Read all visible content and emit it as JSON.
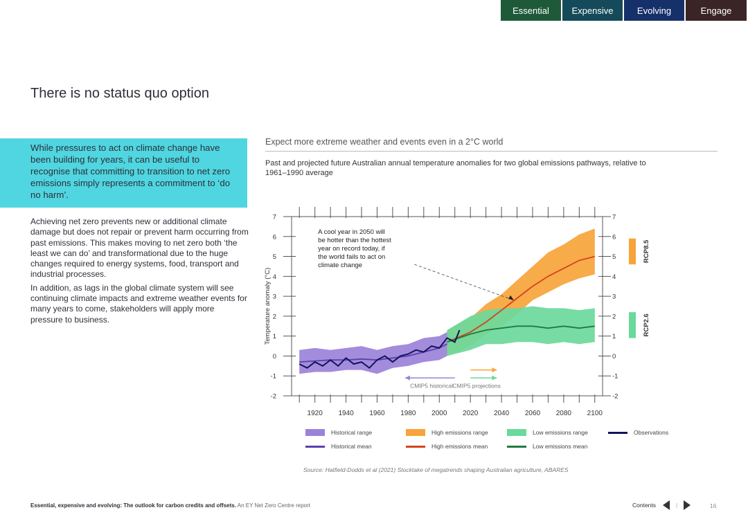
{
  "tabs": [
    {
      "label": "Essential"
    },
    {
      "label": "Expensive"
    },
    {
      "label": "Evolving"
    },
    {
      "label": "Engage"
    }
  ],
  "page_title": "There is no status quo option",
  "callout": "While pressures to act on climate change have been building for years, it can be useful to recognise that committing to transition to net zero emissions simply represents a commitment to ‘do no harm’.",
  "body": [
    "Achieving net zero prevents new or additional climate damage but does not repair or prevent harm occurring from past emissions. This makes moving to net zero both ‘the least we can do’ and transformational due to the huge changes required to energy systems, food, transport and industrial processes.",
    "In addition, as lags in the global climate system will see continuing climate impacts and extreme weather events for many years to come, stakeholders will apply more pressure to business."
  ],
  "figure": {
    "title": "Expect more extreme weather and events even in a 2°C world",
    "subtitle": "Past and projected future Australian annual temperature anomalies for two global emissions pathways, relative to 1961–1990 average",
    "source": "Source: Hatfield-Dodds et al (2021) Stocktake of megatrends shaping Australian agriculture, ABARES"
  },
  "chart_data": {
    "type": "line",
    "ylabel": "Temperature anomaly (°C)",
    "xlim": [
      1905,
      2105
    ],
    "ylim": [
      -2,
      7
    ],
    "x_ticks": [
      1920,
      1940,
      1960,
      1980,
      2000,
      2020,
      2040,
      2060,
      2080,
      2100
    ],
    "y_ticks": [
      -2,
      -1,
      0,
      1,
      2,
      3,
      4,
      5,
      6,
      7
    ],
    "annotation": "A cool year in 2050 will be hotter than the hottest year on record today, if the world fails to act on climate change",
    "period_labels": {
      "historical": "CMIP5 historical",
      "projections": "CMIP5 projections"
    },
    "scenario_labels": [
      "RCP8.5",
      "RCP2.6"
    ],
    "series": [
      {
        "name": "Historical range",
        "kind": "band",
        "color": "#9b82d8",
        "x": [
          1910,
          1920,
          1930,
          1940,
          1950,
          1960,
          1970,
          1980,
          1990,
          2000,
          2005
        ],
        "low": [
          -0.9,
          -0.8,
          -0.8,
          -0.7,
          -0.7,
          -0.9,
          -0.6,
          -0.5,
          -0.3,
          -0.2,
          0.0
        ],
        "high": [
          0.3,
          0.4,
          0.3,
          0.4,
          0.5,
          0.3,
          0.5,
          0.6,
          0.9,
          1.0,
          1.2
        ]
      },
      {
        "name": "Historical mean",
        "kind": "line",
        "color": "#5a3fb0",
        "x": [
          1910,
          1920,
          1930,
          1940,
          1950,
          1960,
          1970,
          1980,
          1990,
          2000,
          2005
        ],
        "y": [
          -0.3,
          -0.25,
          -0.2,
          -0.2,
          -0.15,
          -0.2,
          -0.1,
          0.0,
          0.2,
          0.4,
          0.6
        ]
      },
      {
        "name": "High emissions range",
        "kind": "band",
        "color": "#f7a43a",
        "x": [
          2005,
          2020,
          2030,
          2040,
          2050,
          2060,
          2070,
          2080,
          2090,
          2100
        ],
        "low": [
          0.0,
          0.5,
          1.1,
          1.5,
          2.1,
          2.8,
          3.2,
          3.6,
          3.9,
          4.1
        ],
        "high": [
          1.3,
          1.9,
          2.6,
          3.1,
          3.8,
          4.5,
          5.2,
          5.6,
          6.1,
          6.4
        ]
      },
      {
        "name": "High emissions mean",
        "kind": "line",
        "color": "#d2451e",
        "x": [
          2005,
          2020,
          2030,
          2040,
          2050,
          2060,
          2070,
          2080,
          2090,
          2100
        ],
        "y": [
          0.7,
          1.2,
          1.7,
          2.3,
          2.9,
          3.5,
          4.0,
          4.4,
          4.8,
          5.0
        ]
      },
      {
        "name": "Low emissions range",
        "kind": "band",
        "color": "#6bd89c",
        "x": [
          2005,
          2020,
          2030,
          2040,
          2050,
          2060,
          2070,
          2080,
          2090,
          2100
        ],
        "low": [
          0.0,
          0.3,
          0.6,
          0.6,
          0.7,
          0.7,
          0.6,
          0.7,
          0.6,
          0.7
        ],
        "high": [
          1.3,
          2.0,
          2.3,
          2.4,
          2.4,
          2.5,
          2.4,
          2.4,
          2.3,
          2.4
        ]
      },
      {
        "name": "Low emissions mean",
        "kind": "line",
        "color": "#1f7a3e",
        "x": [
          2005,
          2020,
          2030,
          2040,
          2050,
          2060,
          2070,
          2080,
          2090,
          2100
        ],
        "y": [
          0.7,
          1.1,
          1.3,
          1.4,
          1.5,
          1.5,
          1.4,
          1.5,
          1.4,
          1.5
        ]
      },
      {
        "name": "Observations",
        "kind": "line",
        "color": "#12135a",
        "x": [
          1910,
          1915,
          1920,
          1925,
          1930,
          1935,
          1940,
          1945,
          1950,
          1955,
          1960,
          1965,
          1970,
          1975,
          1980,
          1985,
          1990,
          1995,
          2000,
          2005,
          2010,
          2013
        ],
        "y": [
          -0.4,
          -0.6,
          -0.3,
          -0.5,
          -0.2,
          -0.5,
          -0.1,
          -0.4,
          -0.3,
          -0.6,
          -0.2,
          0.0,
          -0.3,
          0.0,
          0.1,
          0.3,
          0.2,
          0.5,
          0.4,
          0.9,
          0.7,
          1.3
        ]
      }
    ]
  },
  "footer": {
    "report_bold": "Essential, expensive and evolving: The outlook for carbon credits and offsets.",
    "report_light": "An EY Net Zero Centre report",
    "contents": "Contents",
    "page": "16"
  }
}
